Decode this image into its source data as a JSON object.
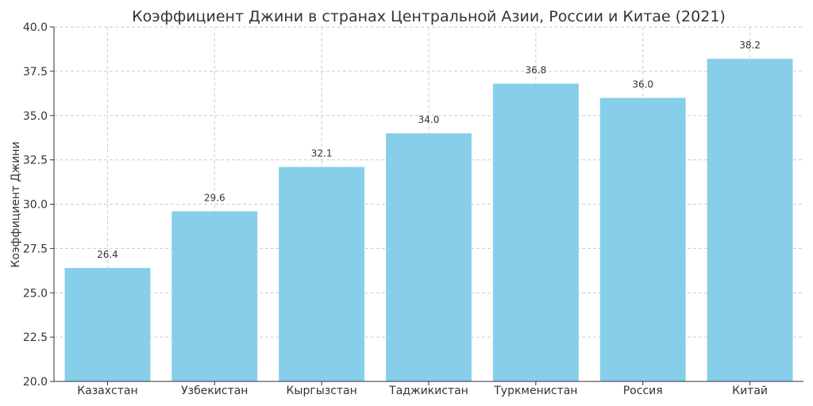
{
  "chart_data": {
    "type": "bar",
    "title": "Коэффициент Джини в странах Центральной Азии, России и Китае (2021)",
    "xlabel": "",
    "ylabel": "Коэффициент Джини",
    "categories": [
      "Казахстан",
      "Узбекистан",
      "Кыргызстан",
      "Таджикистан",
      "Туркменистан",
      "Россия",
      "Китай"
    ],
    "values": [
      26.4,
      29.6,
      32.1,
      34.0,
      36.8,
      36.0,
      38.2
    ],
    "value_labels": [
      "26.4",
      "29.6",
      "32.1",
      "34.0",
      "36.8",
      "36.0",
      "38.2"
    ],
    "ylim": [
      20,
      40
    ],
    "yticks": [
      20.0,
      22.5,
      25.0,
      27.5,
      30.0,
      32.5,
      35.0,
      37.5,
      40.0
    ],
    "ytick_labels": [
      "20.0",
      "22.5",
      "25.0",
      "27.5",
      "30.0",
      "32.5",
      "35.0",
      "37.5",
      "40.0"
    ],
    "grid": true,
    "bar_color": "#87ceeb"
  }
}
